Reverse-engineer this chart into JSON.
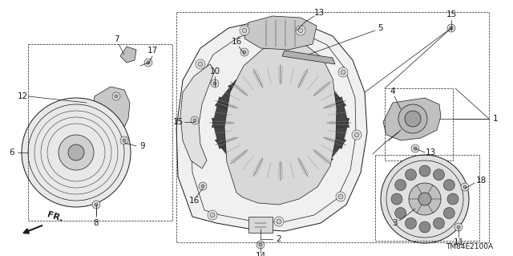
{
  "background_color": "#ffffff",
  "line_color": "#1a1a1a",
  "diagram_code": "TM84E2100A",
  "fig_width": 6.4,
  "fig_height": 3.19,
  "dpi": 100,
  "label_fontsize": 7.5,
  "ref_fontsize": 6.5
}
